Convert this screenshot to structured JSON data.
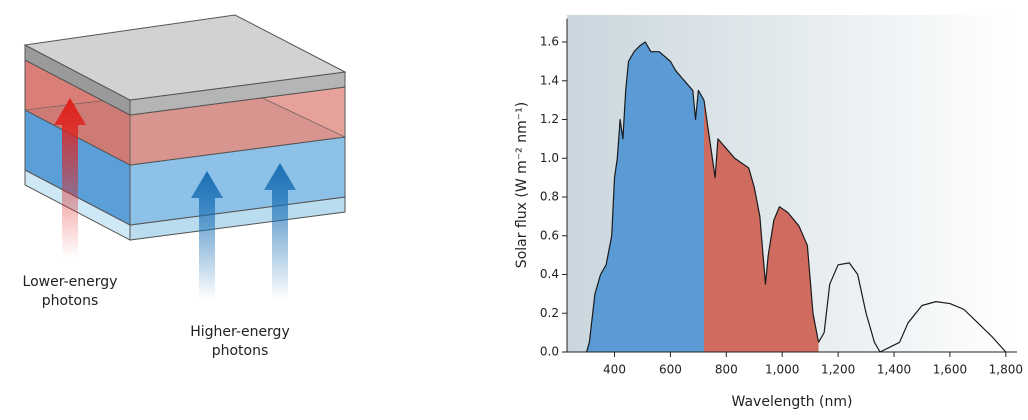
{
  "diagram": {
    "lower_label": [
      "Lower-energy",
      "photons"
    ],
    "higher_label": [
      "Higher-energy",
      "photons"
    ]
  },
  "chart_data": {
    "type": "line",
    "x_label": "Wavelength (nm)",
    "y_label": "Solar flux (W m⁻² nm⁻¹)",
    "xlim": [
      230,
      1840
    ],
    "ylim": [
      0,
      1.72
    ],
    "xticks": [
      400,
      600,
      800,
      {
        "value": 1000,
        "label": "1,000"
      },
      {
        "value": 1200,
        "label": "1,200"
      },
      {
        "value": 1400,
        "label": "1,400"
      },
      {
        "value": 1600,
        "label": "1,600"
      },
      {
        "value": 1800,
        "label": "1,800"
      }
    ],
    "yticks": [
      {
        "value": 0,
        "label": "0.0"
      },
      0.2,
      0.4,
      0.6,
      0.8,
      {
        "value": 1,
        "label": "1.0"
      },
      1.2,
      1.4,
      1.6
    ],
    "grid": false,
    "series": [
      {
        "color": "#5b9bd5",
        "fill": true,
        "x": [
          300,
          310,
          330,
          350,
          370,
          390,
          400,
          410,
          420,
          430,
          440,
          450,
          470,
          490,
          510,
          530,
          560,
          600,
          620,
          650,
          680,
          690,
          700,
          720
        ],
        "values": [
          0,
          0.05,
          0.3,
          0.4,
          0.45,
          0.6,
          0.9,
          1.0,
          1.2,
          1.1,
          1.35,
          1.5,
          1.55,
          1.58,
          1.6,
          1.55,
          1.55,
          1.5,
          1.45,
          1.4,
          1.35,
          1.2,
          1.35,
          1.3
        ]
      },
      {
        "color": "#d06b5f",
        "fill": true,
        "x": [
          720,
          740,
          760,
          770,
          800,
          830,
          850,
          880,
          900,
          920,
          940,
          950,
          970,
          990,
          1020,
          1060,
          1090,
          1110,
          1130
        ],
        "values": [
          1.3,
          1.1,
          0.9,
          1.1,
          1.05,
          1.0,
          0.98,
          0.95,
          0.85,
          0.7,
          0.35,
          0.5,
          0.68,
          0.75,
          0.72,
          0.65,
          0.55,
          0.2,
          0.05
        ]
      },
      {
        "color": "#222222",
        "fill": false,
        "x": [
          1130,
          1150,
          1170,
          1200,
          1240,
          1270,
          1300,
          1330,
          1350,
          1420,
          1450,
          1500,
          1550,
          1600,
          1650,
          1700,
          1750,
          1800
        ],
        "values": [
          0.05,
          0.1,
          0.35,
          0.45,
          0.46,
          0.4,
          0.2,
          0.05,
          0,
          0.05,
          0.15,
          0.24,
          0.26,
          0.25,
          0.22,
          0.15,
          0.08,
          0
        ]
      }
    ]
  }
}
